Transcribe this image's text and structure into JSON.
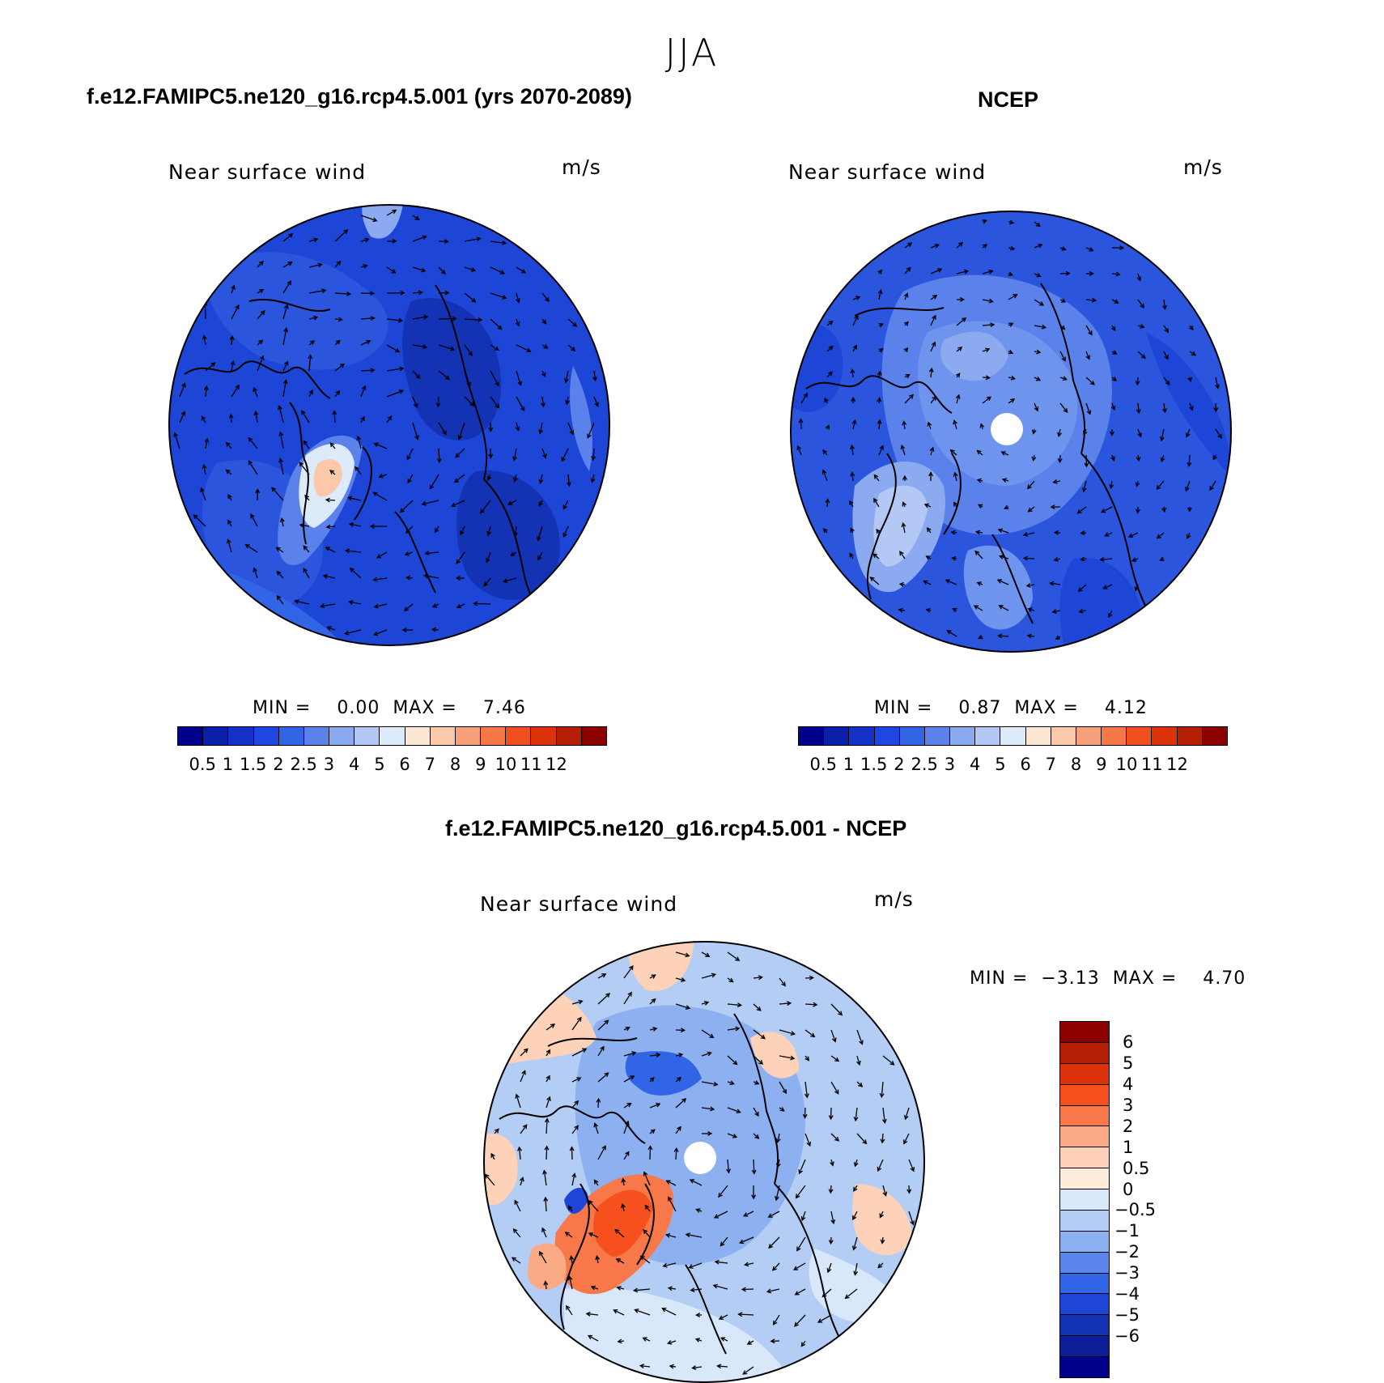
{
  "figure_title": "JJA",
  "panels": [
    {
      "title": "f.e12.FAMIPC5.ne120_g16.rcp4.5.001 (yrs 2070-2089)",
      "subtitle": "Near surface wind",
      "units": "m/s",
      "min_label": "MIN =",
      "min_value": "0.00",
      "max_label": "MAX =",
      "max_value": "7.46"
    },
    {
      "title": "NCEP",
      "subtitle": "Near surface wind",
      "units": "m/s",
      "min_label": "MIN =",
      "min_value": "0.87",
      "max_label": "MAX =",
      "max_value": "4.12"
    },
    {
      "title": "f.e12.FAMIPC5.ne120_g16.rcp4.5.001 - NCEP",
      "subtitle": "Near surface wind",
      "units": "m/s",
      "min_label": "MIN =",
      "min_value": "−3.13",
      "max_label": "MAX =",
      "max_value": "4.70"
    }
  ],
  "colorbar_abs": {
    "labels": [
      "0.5",
      "1",
      "1.5",
      "2",
      "2.5",
      "3",
      "4",
      "5",
      "6",
      "7",
      "8",
      "9",
      "10",
      "11",
      "12"
    ],
    "colors": [
      "#00008c",
      "#0b1ea8",
      "#1432c8",
      "#1e46e0",
      "#3264e6",
      "#5a82ea",
      "#8caaf0",
      "#b4c8f5",
      "#dceafa",
      "#fde6d2",
      "#fbc8aa",
      "#f8a07a",
      "#f57846",
      "#f0501e",
      "#dc320a",
      "#b41e05",
      "#8c0000"
    ]
  },
  "colorbar_diff": {
    "labels": [
      "6",
      "5",
      "4",
      "3",
      "2",
      "1",
      "0.5",
      "0",
      "−0.5",
      "−1",
      "−2",
      "−3",
      "−4",
      "−5",
      "−6"
    ],
    "colors": [
      "#8c0000",
      "#b41e05",
      "#dc320a",
      "#f5501e",
      "#f8784a",
      "#fbaa86",
      "#fdd2b8",
      "#fdebdc",
      "#d8e8fa",
      "#b4cdf5",
      "#8cb0f0",
      "#5a86eb",
      "#3264e6",
      "#1e46d6",
      "#1432b4",
      "#0b1e96",
      "#00008c"
    ]
  },
  "chart_data": {
    "type": "heatmap",
    "projection": "north polar stereographic",
    "season": "JJA",
    "variable": "Near surface wind",
    "units": "m/s",
    "panels": [
      {
        "name": "f.e12.FAMIPC5.ne120_g16.rcp4.5.001 (yrs 2070-2089)",
        "min": 0.0,
        "max": 7.46,
        "contour_levels": [
          0.5,
          1,
          1.5,
          2,
          2.5,
          3,
          4,
          5,
          6,
          7,
          8,
          9,
          10,
          11,
          12
        ]
      },
      {
        "name": "NCEP",
        "min": 0.87,
        "max": 4.12,
        "contour_levels": [
          0.5,
          1,
          1.5,
          2,
          2.5,
          3,
          4,
          5,
          6,
          7,
          8,
          9,
          10,
          11,
          12
        ]
      },
      {
        "name": "f.e12.FAMIPC5.ne120_g16.rcp4.5.001 - NCEP",
        "min": -3.13,
        "max": 4.7,
        "contour_levels": [
          -6,
          -5,
          -4,
          -3,
          -2,
          -1,
          -0.5,
          0,
          0.5,
          1,
          2,
          3,
          4,
          5,
          6
        ]
      }
    ]
  }
}
